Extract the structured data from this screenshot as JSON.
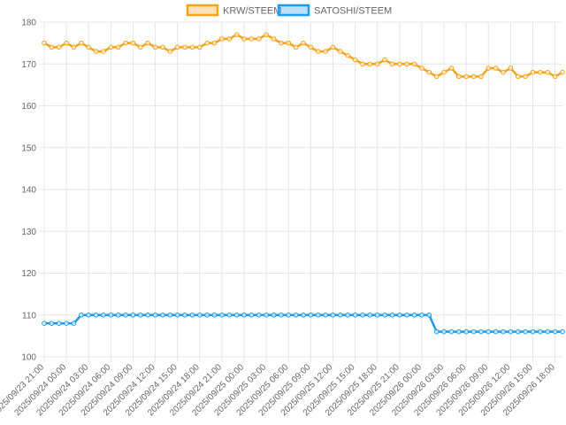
{
  "chart_data": {
    "type": "line",
    "categories": [
      "2025/09/23 21:00",
      null,
      null,
      "2025/09/24 00:00",
      null,
      null,
      "2025/09/24 03:00",
      null,
      null,
      "2025/09/24 06:00",
      null,
      null,
      "2025/09/24 09:00",
      null,
      null,
      "2025/09/24 12:00",
      null,
      null,
      "2025/09/24 15:00",
      null,
      null,
      "2025/09/24 18:00",
      null,
      null,
      "2025/09/24 21:00",
      null,
      null,
      "2025/09/25 00:00",
      null,
      null,
      "2025/09/25 03:00",
      null,
      null,
      "2025/09/25 06:00",
      null,
      null,
      "2025/09/25 09:00",
      null,
      null,
      "2025/09/25 12:00",
      null,
      null,
      "2025/09/25 15:00",
      null,
      null,
      "2025/09/25 18:00",
      null,
      null,
      "2025/09/25 21:00",
      null,
      null,
      "2025/09/26 00:00",
      null,
      null,
      "2025/09/26 03:00",
      null,
      null,
      "2025/09/26 06:00",
      null,
      null,
      "2025/09/26 09:00",
      null,
      null,
      "2025/09/26 12:00",
      null,
      null,
      "2025/09/26 15:00",
      null,
      null,
      "2025/09/26 18:00",
      null
    ],
    "series": [
      {
        "name": "KRW/STEEM",
        "color": "#f5a31a",
        "values": [
          175,
          174,
          174,
          175,
          174,
          175,
          174,
          173,
          173,
          174,
          174,
          175,
          175,
          174,
          175,
          174,
          174,
          173,
          174,
          174,
          174,
          174,
          175,
          175,
          176,
          176,
          177,
          176,
          176,
          176,
          177,
          176,
          175,
          175,
          174,
          175,
          174,
          173,
          173,
          174,
          173,
          172,
          171,
          170,
          170,
          170,
          171,
          170,
          170,
          170,
          170,
          169,
          168,
          167,
          168,
          169,
          167,
          167,
          167,
          167,
          169,
          169,
          168,
          169,
          167,
          167,
          168,
          168,
          168,
          167,
          168
        ]
      },
      {
        "name": "SATOSHI/STEEM",
        "color": "#1e9be9",
        "values": [
          108,
          108,
          108,
          108,
          108,
          110,
          110,
          110,
          110,
          110,
          110,
          110,
          110,
          110,
          110,
          110,
          110,
          110,
          110,
          110,
          110,
          110,
          110,
          110,
          110,
          110,
          110,
          110,
          110,
          110,
          110,
          110,
          110,
          110,
          110,
          110,
          110,
          110,
          110,
          110,
          110,
          110,
          110,
          110,
          110,
          110,
          110,
          110,
          110,
          110,
          110,
          110,
          110,
          106,
          106,
          106,
          106,
          106,
          106,
          106,
          106,
          106,
          106,
          106,
          106,
          106,
          106,
          106,
          106,
          106,
          106
        ]
      }
    ],
    "ylim": [
      100,
      180
    ],
    "yticks": [
      100,
      110,
      120,
      130,
      140,
      150,
      160,
      170,
      180
    ],
    "grid": true
  }
}
